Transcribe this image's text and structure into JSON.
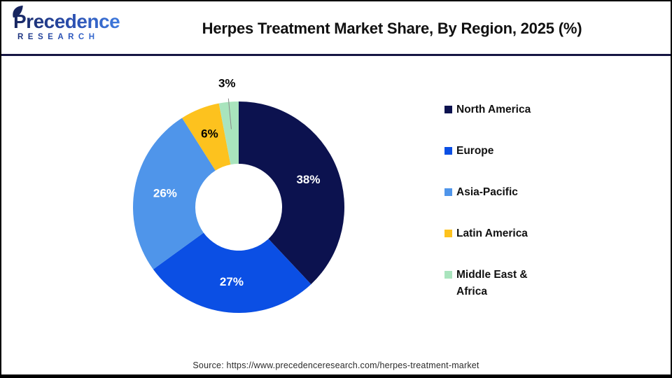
{
  "header": {
    "logo": {
      "name": "Precedence",
      "subtitle": "RESEARCH"
    },
    "title": "Herpes Treatment Market Share, By Region, 2025 (%)"
  },
  "chart_data": {
    "type": "pie",
    "subtype": "donut",
    "title": "Herpes Treatment Market Share, By Region, 2025 (%)",
    "categories": [
      "North America",
      "Europe",
      "Asia-Pacific",
      "Latin America",
      "Middle East & Africa"
    ],
    "values": [
      38,
      27,
      26,
      6,
      3
    ],
    "unit": "%",
    "colors": [
      "#0C124F",
      "#0B4FE4",
      "#4F95EA",
      "#FDC21E",
      "#A9E4BD"
    ],
    "labels": [
      "38%",
      "27%",
      "26%",
      "6%",
      "3%"
    ],
    "label_colors": [
      "#FFFFFF",
      "#FFFFFF",
      "#FFFFFF",
      "#000000",
      "#000000"
    ],
    "label_placement": [
      "inside",
      "inside",
      "inside",
      "inside",
      "outside"
    ],
    "start_angle": 0,
    "direction": "clockwise",
    "hole_ratio": 0.41,
    "legend_position": "right",
    "leader_line_color": "#8a8a8a"
  },
  "legend": {
    "items": [
      {
        "label": "North America",
        "color": "#0C124F"
      },
      {
        "label": "Europe",
        "color": "#0B4FE4"
      },
      {
        "label": "Asia-Pacific",
        "color": "#4F95EA"
      },
      {
        "label": "Latin America",
        "color": "#FDC21E"
      },
      {
        "label": "Middle East & Africa",
        "color": "#A9E4BD"
      }
    ]
  },
  "footer": {
    "source": "Source: https://www.precedenceresearch.com/herpes-treatment-market"
  }
}
